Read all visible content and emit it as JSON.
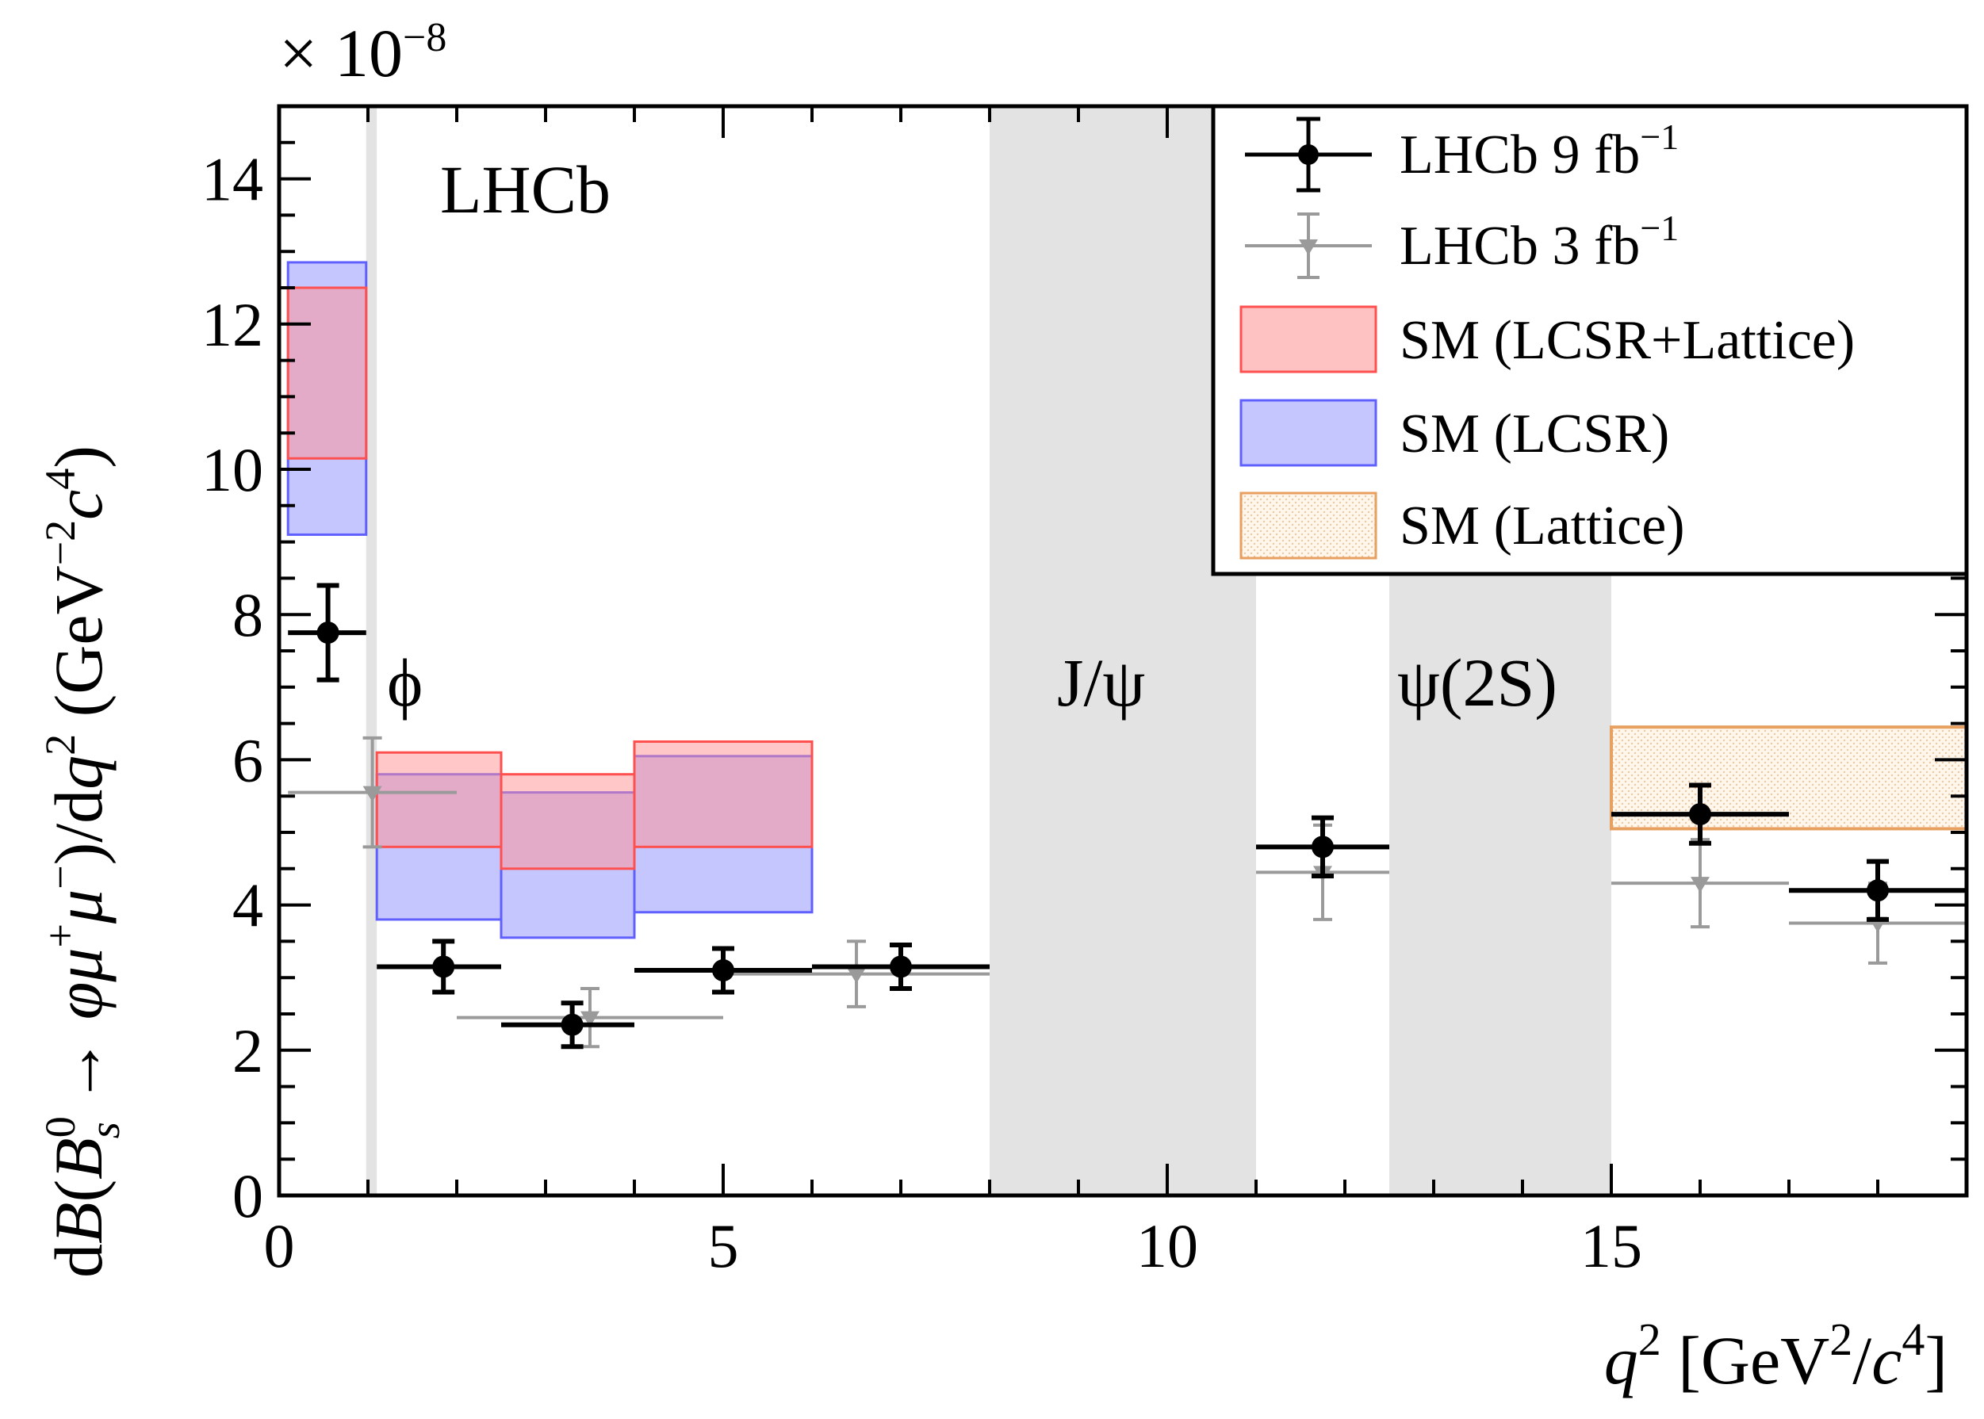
{
  "chart_data": {
    "type": "scatter",
    "title": "",
    "experiment_label": "LHCb",
    "xlabel": {
      "base": "q",
      "sup1": "2",
      "open": " [GeV",
      "sup2": "2",
      "mid": "/",
      "c": "c",
      "sup3": "4",
      "close": "]"
    },
    "ylabel": {
      "d1": "d",
      "B": "B",
      "open": "(",
      "Bs": "B",
      "Bs_sup": "0",
      "Bs_sub": "s",
      "arrow": " → ",
      "phi": "φ",
      "mu": "μ",
      "plus": "+",
      "mu2": "μ",
      "minus": "−",
      "close": ")",
      "slash": "/d",
      "q": "q",
      "q_sup": "2",
      "unit_open": " (GeV",
      "unit_sup1": "−2",
      "c": "c",
      "unit_sup2": "4",
      "unit_close": ")"
    },
    "exponent": {
      "times": "× 10",
      "sup": "−8"
    },
    "xlim": [
      0,
      19
    ],
    "ylim": [
      0,
      15
    ],
    "xticks": [
      "0",
      "5",
      "10",
      "15"
    ],
    "xtick_values": [
      0,
      5,
      10,
      15
    ],
    "yticks": [
      "0",
      "2",
      "4",
      "6",
      "8",
      "10",
      "12",
      "14"
    ],
    "ytick_values": [
      0,
      2,
      4,
      6,
      8,
      10,
      12,
      14
    ],
    "veto_regions": [
      {
        "name": "phi",
        "label": "ϕ",
        "x": [
          0.98,
          1.1
        ]
      },
      {
        "name": "jpsi",
        "label": "J/ψ",
        "x": [
          8.0,
          11.0
        ]
      },
      {
        "name": "psi2s",
        "label": "ψ(2S)",
        "x": [
          12.5,
          15.0
        ]
      }
    ],
    "sm_lcsr": [
      {
        "x": [
          0.1,
          0.98
        ],
        "y": [
          9.1,
          12.85
        ]
      },
      {
        "x": [
          1.1,
          2.5
        ],
        "y": [
          3.8,
          5.8
        ]
      },
      {
        "x": [
          2.5,
          4.0
        ],
        "y": [
          3.55,
          5.55
        ]
      },
      {
        "x": [
          4.0,
          6.0
        ],
        "y": [
          3.9,
          6.05
        ]
      }
    ],
    "sm_lcsr_lattice": [
      {
        "x": [
          0.1,
          0.98
        ],
        "y": [
          10.15,
          12.5
        ]
      },
      {
        "x": [
          1.1,
          2.5
        ],
        "y": [
          4.8,
          6.1
        ]
      },
      {
        "x": [
          2.5,
          4.0
        ],
        "y": [
          4.5,
          5.8
        ]
      },
      {
        "x": [
          4.0,
          6.0
        ],
        "y": [
          4.8,
          6.25
        ]
      }
    ],
    "sm_lattice": [
      {
        "x": [
          15.0,
          19.0
        ],
        "y": [
          5.05,
          6.45
        ]
      }
    ],
    "series": [
      {
        "name": "LHCb 9 fb⁻¹",
        "color": "#000000",
        "points": [
          {
            "x": 0.55,
            "xlo": 0.1,
            "xhi": 0.98,
            "y": 7.75,
            "ey": 0.65
          },
          {
            "x": 1.85,
            "xlo": 1.1,
            "xhi": 2.5,
            "y": 3.15,
            "ey": 0.35
          },
          {
            "x": 3.3,
            "xlo": 2.5,
            "xhi": 4.0,
            "y": 2.35,
            "ey": 0.3
          },
          {
            "x": 5.0,
            "xlo": 4.0,
            "xhi": 6.0,
            "y": 3.1,
            "ey": 0.3
          },
          {
            "x": 7.0,
            "xlo": 6.0,
            "xhi": 8.0,
            "y": 3.15,
            "ey": 0.3
          },
          {
            "x": 11.75,
            "xlo": 11.0,
            "xhi": 12.5,
            "y": 4.8,
            "ey": 0.4
          },
          {
            "x": 16.0,
            "xlo": 15.0,
            "xhi": 17.0,
            "y": 5.25,
            "ey": 0.4
          },
          {
            "x": 18.0,
            "xlo": 17.0,
            "xhi": 19.0,
            "y": 4.2,
            "ey": 0.4
          }
        ]
      },
      {
        "name": "LHCb 3 fb⁻¹",
        "color": "#9a9a9a",
        "points": [
          {
            "x": 1.05,
            "xlo": 0.1,
            "xhi": 2.0,
            "y": 5.55,
            "ey": 0.75
          },
          {
            "x": 3.5,
            "xlo": 2.0,
            "xhi": 5.0,
            "y": 2.45,
            "ey": 0.4
          },
          {
            "x": 6.5,
            "xlo": 5.0,
            "xhi": 8.0,
            "y": 3.05,
            "ey": 0.45
          },
          {
            "x": 11.75,
            "xlo": 11.0,
            "xhi": 12.5,
            "y": 4.45,
            "ey": 0.65
          },
          {
            "x": 16.0,
            "xlo": 15.0,
            "xhi": 17.0,
            "y": 4.3,
            "ey": 0.6
          },
          {
            "x": 18.0,
            "xlo": 17.0,
            "xhi": 19.0,
            "y": 3.75,
            "ey": 0.55
          }
        ]
      }
    ],
    "legend": {
      "position": "top-right",
      "entries": [
        {
          "key": "lhcb9",
          "text": "LHCb 9 fb",
          "sup": "−1"
        },
        {
          "key": "lhcb3",
          "text": "LHCb 3 fb",
          "sup": "−1"
        },
        {
          "key": "lcsr_lattice",
          "text": "SM (LCSR+Lattice)"
        },
        {
          "key": "lcsr",
          "text": "SM (LCSR)"
        },
        {
          "key": "lattice",
          "text": "SM (Lattice)"
        }
      ]
    },
    "colors": {
      "data9": "#000000",
      "data3": "#9a9a9a",
      "lcsr_fill": "#b3b3ff",
      "lcsr_edge": "#6060ff",
      "lcsr_lattice_fill": "#ff9090",
      "lcsr_lattice_edge": "#ff5050",
      "lattice_fill": "#fff4e8",
      "lattice_edge": "#e8a060",
      "veto": "#e3e3e3"
    }
  }
}
